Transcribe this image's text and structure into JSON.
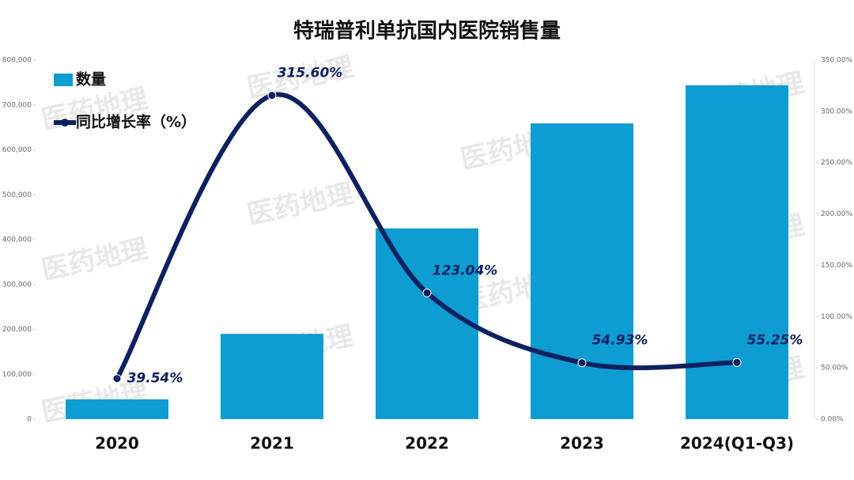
{
  "chart_data": {
    "type": "bar",
    "title": "特瑞普利单抗国内医院销售量",
    "watermark": "医药地理",
    "categories": [
      "2020",
      "2021",
      "2022",
      "2023",
      "2024(Q1-Q3)"
    ],
    "series": [
      {
        "name": "数量",
        "type": "bar",
        "color": "#0e9dd3",
        "values": [
          44000,
          190000,
          425000,
          659000,
          744000
        ]
      },
      {
        "name": "同比增长率（%）",
        "type": "line",
        "axis": "y2",
        "color": "#0d2160",
        "values": [
          39.54,
          315.6,
          123.04,
          54.93,
          55.25
        ],
        "value_labels": [
          "39.54%",
          "315.60%",
          "123.04%",
          "54.93%",
          "55.25%"
        ]
      }
    ],
    "ylim": [
      0,
      800000
    ],
    "yticks": [
      0,
      {
        "value": 100000,
        "label": "100,000"
      },
      {
        "value": 200000,
        "label": "200,000"
      },
      {
        "value": 300000,
        "label": "300,000"
      },
      {
        "value": 400000,
        "label": "400,000"
      },
      {
        "value": 500000,
        "label": "500,000"
      },
      {
        "value": 600000,
        "label": "600,000"
      },
      {
        "value": 700000,
        "label": "700,000"
      },
      {
        "value": 800000,
        "label": "800,000"
      }
    ],
    "y2lim": [
      0,
      350
    ],
    "y2ticks": [
      {
        "value": 0,
        "label": "0.00%"
      },
      {
        "value": 50,
        "label": "50.00%"
      },
      {
        "value": 100,
        "label": "100.00%"
      },
      {
        "value": 150,
        "label": "150.00%"
      },
      {
        "value": 200,
        "label": "200.00%"
      },
      {
        "value": 250,
        "label": "250.00%"
      },
      {
        "value": 300,
        "label": "300.00%"
      },
      {
        "value": 350,
        "label": "350.00%"
      }
    ],
    "legend": "top-left"
  }
}
